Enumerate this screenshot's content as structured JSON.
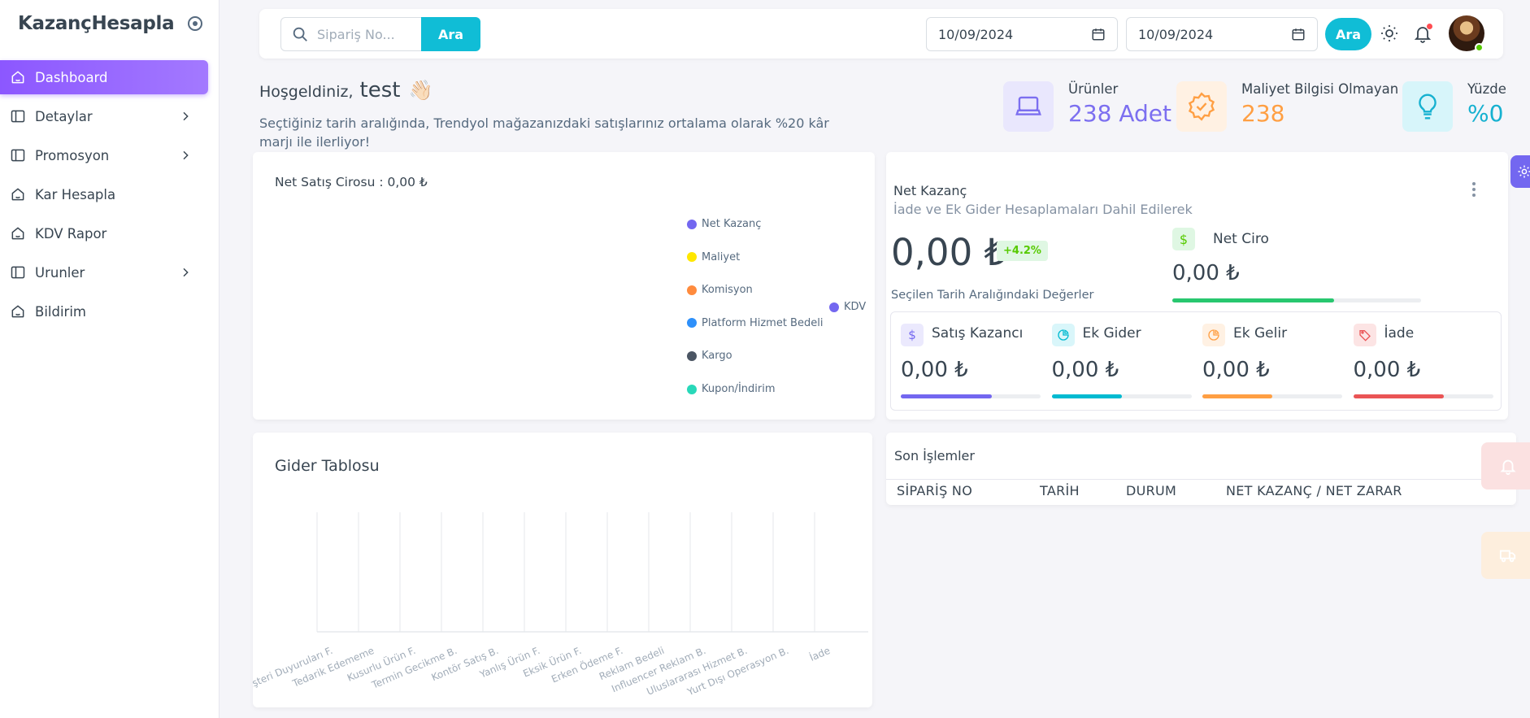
{
  "brand": {
    "name": "KazançHesapla"
  },
  "sidebar": {
    "items": [
      {
        "label": "Dashboard",
        "active": true,
        "icon": "home-icon",
        "has_children": false
      },
      {
        "label": "Detaylar",
        "icon": "layout-icon",
        "has_children": true
      },
      {
        "label": "Promosyon",
        "icon": "layout-icon",
        "has_children": true
      },
      {
        "label": "Kar Hesapla",
        "icon": "home-icon",
        "has_children": false
      },
      {
        "label": "KDV Rapor",
        "icon": "home-icon",
        "has_children": false
      },
      {
        "label": "Urunler",
        "icon": "layout-icon",
        "has_children": true
      },
      {
        "label": "Bildirim",
        "icon": "home-icon",
        "has_children": false
      }
    ]
  },
  "topbar": {
    "search_placeholder": "Sipariş No...",
    "search_button": "Ara",
    "date_start": "10/09/2024",
    "date_end": "10/09/2024",
    "filter_button": "Ara",
    "colors": {
      "accent": "#10bdd6"
    }
  },
  "welcome": {
    "greeting": "Hoşgeldiniz,",
    "user": "test",
    "wave": "👋🏻",
    "message": "Seçtiğiniz tarih aralığında, Trendyol mağazanızdaki satışlarınız ortalama olarak %20 kâr marjı ile ilerliyor!"
  },
  "stats": [
    {
      "label": "Ürünler",
      "value": "238 Adet",
      "color": "#7c6ff0",
      "icon": "laptop-icon"
    },
    {
      "label": "Maliyet Bilgisi Olmayan",
      "value": "238",
      "color": "#ff9f43",
      "icon": "badge-check-icon"
    },
    {
      "label": "Yüzde",
      "value": "%0",
      "color": "#16b1d0",
      "icon": "lightbulb-icon"
    }
  ],
  "net_sales": {
    "title": "Net Satış Cirosu : 0,00 ₺",
    "legend": [
      {
        "name": "Net Kazanç",
        "color": "#7367f0"
      },
      {
        "name": "Maliyet",
        "color": "#ffe700"
      },
      {
        "name": "Komisyon",
        "color": "#ff8b3d"
      },
      {
        "name": "Platform Hizmet Bedeli",
        "color": "#2e90fa"
      },
      {
        "name": "Kargo",
        "color": "#4b5563"
      },
      {
        "name": "Kupon/İndirim",
        "color": "#28d8b9"
      }
    ],
    "legend_right": {
      "name": "KDV",
      "color": "#7367f0"
    }
  },
  "net_profit": {
    "title": "Net Kazanç",
    "subtitle": "İade ve Ek Gider Hesaplamaları Dahil Edilerek",
    "value": "0,00 ₺",
    "badge": "+4.2%",
    "caption": "Seçilen Tarih Aralığındaki Değerler",
    "net_ciro_label": "Net Ciro",
    "net_ciro_value": "0,00 ₺",
    "net_ciro_progress": 0.65,
    "metrics": [
      {
        "label": "Satış Kazancı",
        "value": "0,00 ₺",
        "color": "#7367f0",
        "bg": "#ebe9fd",
        "icon": "dollar-icon",
        "progress": 0.65
      },
      {
        "label": "Ek Gider",
        "value": "0,00 ₺",
        "color": "#00bad1",
        "bg": "#d9f6fa",
        "icon": "pie-chart-icon",
        "progress": 0.5
      },
      {
        "label": "Ek Gelir",
        "value": "0,00 ₺",
        "color": "#ff9f43",
        "bg": "#fff1e3",
        "icon": "pie-chart-icon",
        "progress": 0.5
      },
      {
        "label": "İade",
        "value": "0,00 ₺",
        "color": "#ea5455",
        "bg": "#fce4e4",
        "icon": "tag-icon",
        "progress": 0.65
      }
    ]
  },
  "expense_table": {
    "title": "Gider Tablosu",
    "categories": [
      "Müşteri Duyuruları F.",
      "Tedarik Edememe",
      "Kusurlu Ürün F.",
      "Termin Gecikme B.",
      "Kontör Satış B.",
      "Yanlış Ürün F.",
      "Eksik Ürün F.",
      "Erken Ödeme F.",
      "Reklam Bedeli",
      "Influencer Reklam B.",
      "Uluslararası Hizmet B.",
      "Yurt Dışı Operasyon B.",
      "İade"
    ]
  },
  "chart_data": {
    "type": "bar",
    "title": "Gider Tablosu",
    "categories": [
      "Müşteri Duyuruları F.",
      "Tedarik Edememe",
      "Kusurlu Ürün F.",
      "Termin Gecikme B.",
      "Kontör Satış B.",
      "Yanlış Ürün F.",
      "Eksik Ürün F.",
      "Erken Ödeme F.",
      "Reklam Bedeli",
      "Influencer Reklam B.",
      "Uluslararası Hizmet B.",
      "Yurt Dışı Operasyon B.",
      "İade"
    ],
    "values": [
      0,
      0,
      0,
      0,
      0,
      0,
      0,
      0,
      0,
      0,
      0,
      0,
      0
    ],
    "xlabel": "",
    "ylabel": "",
    "grid": true
  },
  "transactions": {
    "title": "Son İşlemler",
    "columns": [
      "SİPARİŞ NO",
      "TARİH",
      "DURUM",
      "NET KAZANÇ / NET ZARAR"
    ]
  }
}
